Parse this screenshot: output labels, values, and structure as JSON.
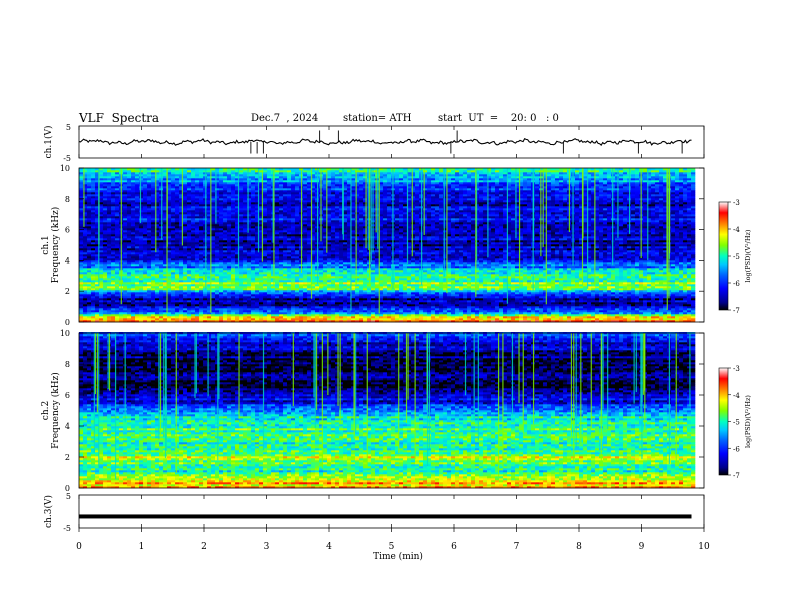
{
  "header": {
    "title": "VLF  Spectra",
    "date": "Dec.7  , 2024",
    "station": "station= ATH",
    "start": "start  UT  =    20: 0   : 0"
  },
  "colors": {
    "spectrum_scale": [
      "#000000",
      "#00008b",
      "#0000ff",
      "#0060ff",
      "#00c8ff",
      "#00ffc0",
      "#7fff00",
      "#ffff00",
      "#ff8000",
      "#ff0000",
      "#ffffff"
    ]
  },
  "chart_data": [
    {
      "type": "line",
      "ylabel": "ch.1(V)",
      "yticks": [
        "5",
        "-5"
      ],
      "ylim": [
        -5,
        5
      ],
      "baseline_value": 0,
      "x_range": [
        0,
        9.8
      ],
      "spikes_min": [
        2.75,
        2.85,
        2.95,
        3.85,
        4.15,
        5.95,
        6.05,
        7.75,
        8.95,
        9.65
      ]
    },
    {
      "type": "heatmap",
      "ylabel": "ch.1",
      "ylabel2": "Frequency (kHz)",
      "yticks": [
        "0",
        "2",
        "4",
        "6",
        "8",
        "10"
      ],
      "ylim": [
        0,
        10
      ],
      "x_range": [
        0,
        9.8
      ],
      "colorbar": {
        "label": "log(PSD)(V²/Hz)",
        "ticks": [
          "-3",
          "-4",
          "-5",
          "-6",
          "-7"
        ],
        "range": [
          -7,
          -3
        ]
      },
      "profile_khz": [
        {
          "f": 0.2,
          "v": -3.8
        },
        {
          "f": 0.5,
          "v": -5.2
        },
        {
          "f": 1.0,
          "v": -6.5
        },
        {
          "f": 1.5,
          "v": -6.6
        },
        {
          "f": 2.0,
          "v": -5.0
        },
        {
          "f": 2.4,
          "v": -4.6
        },
        {
          "f": 3.0,
          "v": -5.1
        },
        {
          "f": 3.6,
          "v": -5.6
        },
        {
          "f": 4.2,
          "v": -6.3
        },
        {
          "f": 5.0,
          "v": -6.5
        },
        {
          "f": 6.0,
          "v": -6.3
        },
        {
          "f": 7.0,
          "v": -6.2
        },
        {
          "f": 8.0,
          "v": -6.4
        },
        {
          "f": 9.0,
          "v": -5.6
        },
        {
          "f": 10.0,
          "v": -5.0
        }
      ]
    },
    {
      "type": "heatmap",
      "ylabel": "ch.2",
      "ylabel2": "Frequency (kHz)",
      "yticks": [
        "0",
        "2",
        "4",
        "6",
        "8",
        "10"
      ],
      "ylim": [
        0,
        10
      ],
      "x_range": [
        0,
        9.8
      ],
      "colorbar": {
        "label": "log(PSD)(V²/Hz)",
        "ticks": [
          "-3",
          "-4",
          "-5",
          "-6",
          "-7"
        ],
        "range": [
          -7,
          -3
        ]
      },
      "profile_khz": [
        {
          "f": 0.2,
          "v": -4.0
        },
        {
          "f": 1.0,
          "v": -5.2
        },
        {
          "f": 2.0,
          "v": -4.4
        },
        {
          "f": 2.6,
          "v": -5.1
        },
        {
          "f": 3.4,
          "v": -4.6
        },
        {
          "f": 4.2,
          "v": -5.2
        },
        {
          "f": 4.8,
          "v": -5.4
        },
        {
          "f": 5.5,
          "v": -6.3
        },
        {
          "f": 6.5,
          "v": -6.7
        },
        {
          "f": 7.5,
          "v": -6.8
        },
        {
          "f": 8.5,
          "v": -6.7
        },
        {
          "f": 9.5,
          "v": -6.2
        },
        {
          "f": 10.0,
          "v": -6.0
        }
      ]
    },
    {
      "type": "line",
      "ylabel": "ch.3(V)",
      "yticks": [
        "5",
        "-5"
      ],
      "ylim": [
        -5,
        5
      ],
      "baseline_value": -1.5,
      "x_range": [
        0,
        9.8
      ]
    }
  ],
  "xaxis": {
    "label": "Time  (min)",
    "ticks": [
      "0",
      "1",
      "2",
      "3",
      "4",
      "5",
      "6",
      "7",
      "8",
      "9",
      "10"
    ],
    "range": [
      0,
      10
    ]
  }
}
